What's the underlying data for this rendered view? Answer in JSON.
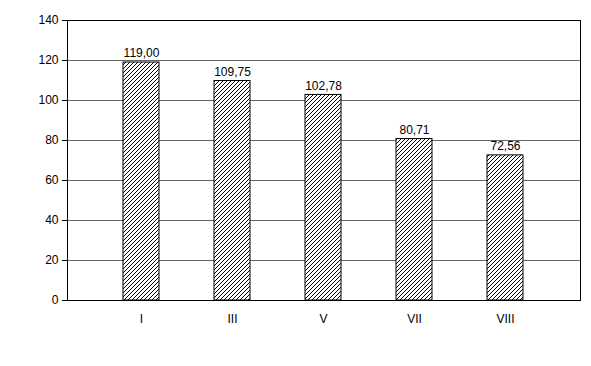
{
  "chart_data": {
    "type": "bar",
    "categories": [
      "I",
      "III",
      "V",
      "VII",
      "VIII"
    ],
    "values": [
      119.0,
      109.75,
      102.78,
      80.71,
      72.56
    ],
    "value_labels": [
      "119,00",
      "109,75",
      "102,78",
      "80,71",
      "72,56"
    ],
    "color": "#000000",
    "ylim": [
      0,
      140
    ],
    "yticks": [
      0,
      20,
      40,
      60,
      80,
      100,
      120,
      140
    ],
    "grid": true,
    "data_labels": true
  }
}
